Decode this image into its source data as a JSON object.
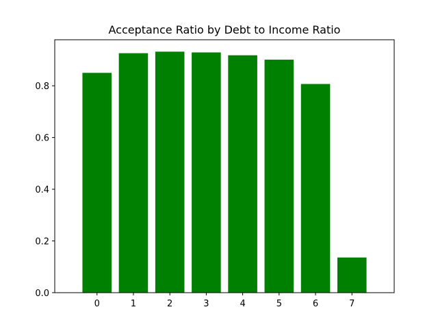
{
  "chart_data": {
    "type": "bar",
    "title": "Acceptance Ratio by Debt to Income Ratio",
    "xlabel": "",
    "ylabel": "",
    "categories": [
      "0",
      "1",
      "2",
      "3",
      "4",
      "5",
      "6",
      "7"
    ],
    "values": [
      0.85,
      0.926,
      0.932,
      0.929,
      0.918,
      0.901,
      0.807,
      0.136
    ],
    "yticks": [
      "0.0",
      "0.2",
      "0.4",
      "0.6",
      "0.8"
    ],
    "ylim": [
      0,
      0.978
    ],
    "grid": false,
    "bar_color": "#008000"
  }
}
